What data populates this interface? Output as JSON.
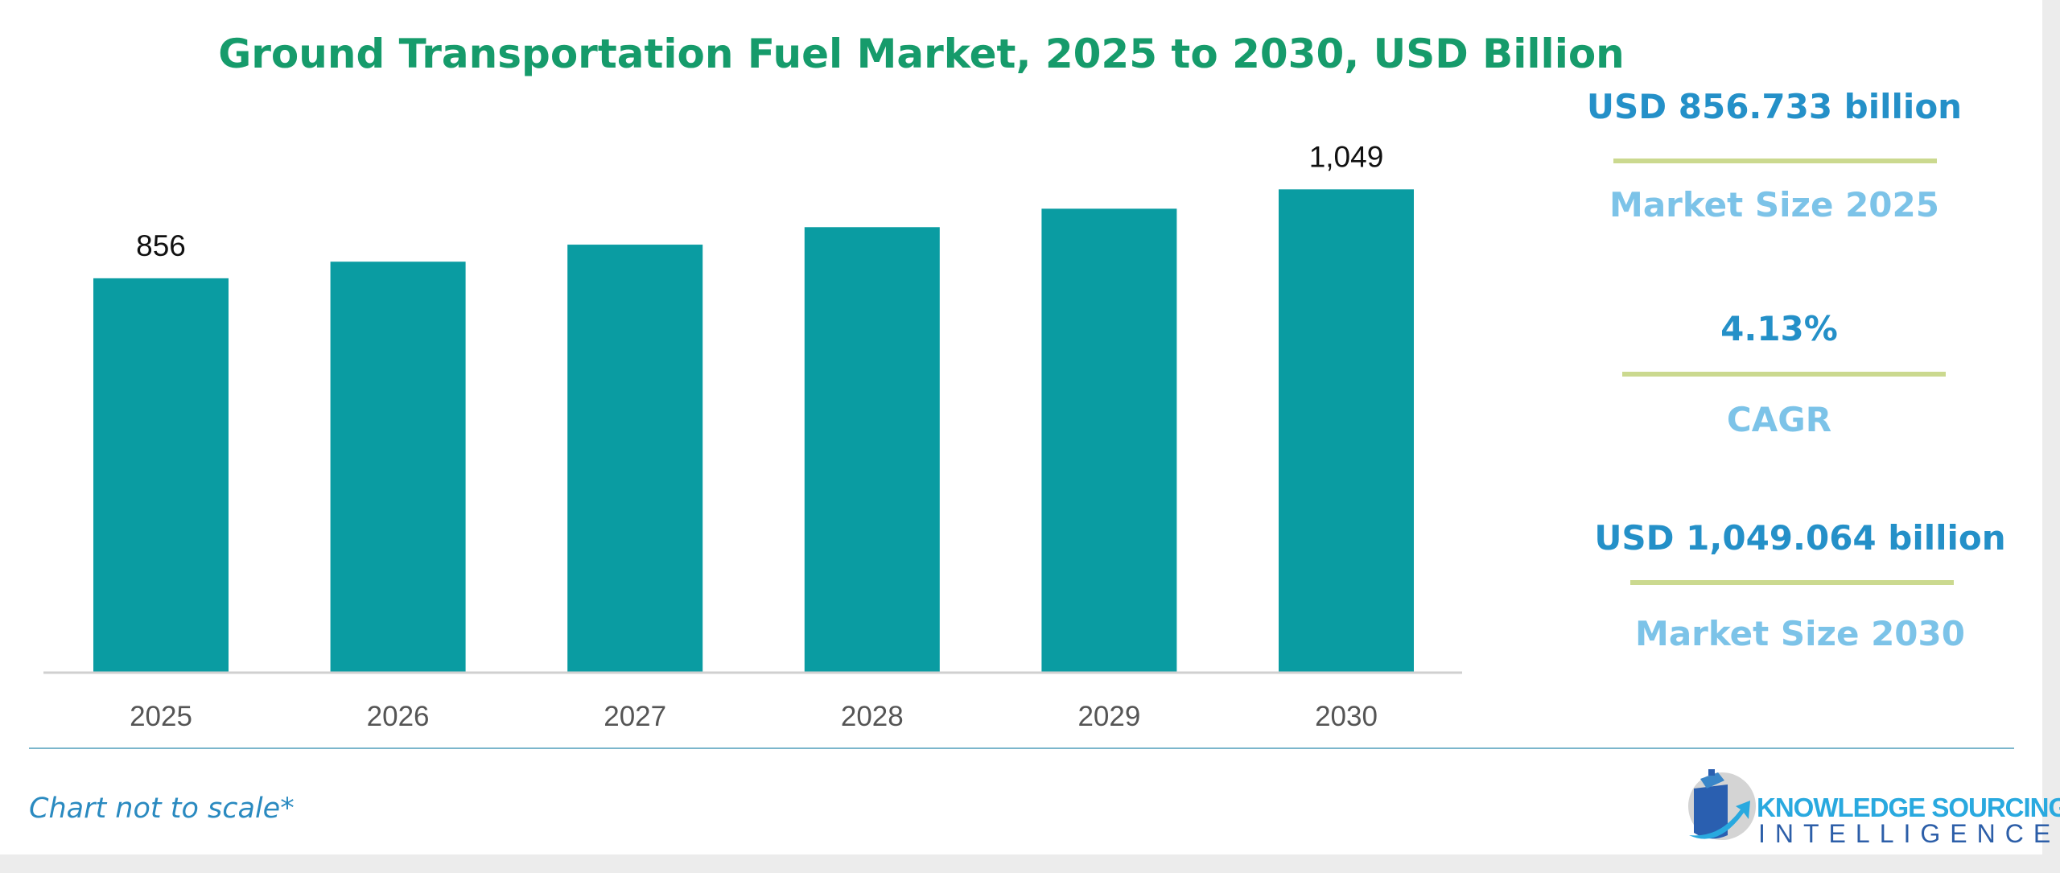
{
  "chart_data": {
    "type": "bar",
    "title": "Ground Transportation Fuel Market, 2025 to 2030, USD Billion",
    "categories": [
      "2025",
      "2026",
      "2027",
      "2028",
      "2029",
      "2030"
    ],
    "values": [
      856,
      892,
      929,
      967,
      1007,
      1049
    ],
    "data_labels": {
      "0": "856",
      "5": "1,049"
    },
    "ylim": [
      0,
      1460
    ],
    "grid": false,
    "bar_color": "#0a9ca2"
  },
  "kpis": [
    {
      "value": "USD 856.733 billion",
      "label": "Market Size 2025"
    },
    {
      "value": "4.13%",
      "label": "CAGR"
    },
    {
      "value": "USD 1,049.064 billion",
      "label": "Market Size 2030"
    }
  ],
  "footer": {
    "note": "Chart not to scale*"
  },
  "logo": {
    "line1": "KNOWLEDGE SOURCING",
    "line2": "INTELLIGENCE"
  },
  "colors": {
    "title": "#169b6b",
    "kpi_value": "#2490c8",
    "kpi_label": "#7cc3e8",
    "separator": "#cbd98f"
  }
}
